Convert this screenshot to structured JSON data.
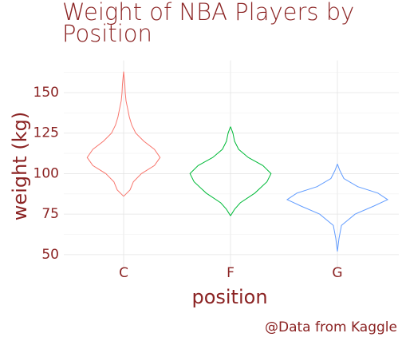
{
  "chart_data": {
    "type": "violin",
    "title": "Weight of NBA Players by Position",
    "xlabel": "position",
    "ylabel": "weight (kg)",
    "caption": "@Data from Kaggle",
    "categories": [
      "C",
      "F",
      "G"
    ],
    "series": [
      {
        "color": "#F8766D",
        "weight": [
          86,
          90,
          95,
          100,
          105,
          110,
          115,
          120,
          125,
          130,
          135,
          140,
          145,
          150,
          155,
          163
        ],
        "density": [
          0,
          8,
          12,
          22,
          38,
          45,
          38,
          25,
          15,
          10,
          7,
          5,
          3,
          2,
          1.5,
          0
        ]
      },
      {
        "color": "#00BA38",
        "weight": [
          74,
          78,
          82,
          88,
          95,
          100,
          105,
          110,
          115,
          120,
          125,
          129
        ],
        "density": [
          0,
          5,
          12,
          30,
          45,
          50,
          40,
          22,
          10,
          5,
          3,
          0
        ]
      },
      {
        "color": "#619CFF",
        "weight": [
          52,
          60,
          68,
          75,
          80,
          84,
          88,
          92,
          97,
          102,
          106
        ],
        "density": [
          0,
          2,
          5,
          22,
          45,
          62,
          50,
          25,
          8,
          3,
          0
        ]
      }
    ],
    "ylim": [
      45,
      165
    ],
    "yticks": [
      50,
      75,
      100,
      125,
      150
    ],
    "minor_yticks": [
      62.5,
      87.5,
      112.5,
      137.5,
      162.5
    ],
    "grid": true
  }
}
